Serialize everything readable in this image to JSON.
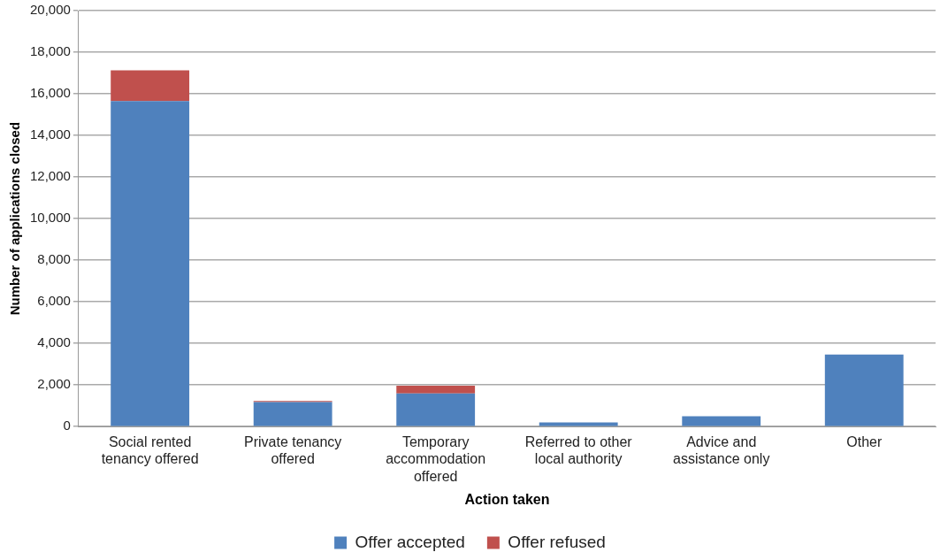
{
  "chart_data": {
    "type": "bar",
    "stacked": true,
    "xlabel": "Action taken",
    "ylabel": "Number of applications closed",
    "categories": [
      "Social rented tenancy offered",
      "Private tenancy offered",
      "Temporary accommodation offered",
      "Referred to other local authority",
      "Advice and assistance only",
      "Other"
    ],
    "series": [
      {
        "name": "Offer accepted",
        "color": "#4f81bd",
        "values": [
          15650,
          1180,
          1590,
          200,
          500,
          3460
        ]
      },
      {
        "name": "Offer refused",
        "color": "#c0504d",
        "values": [
          1480,
          50,
          370,
          0,
          0,
          0
        ]
      }
    ],
    "ylim": [
      0,
      20000
    ],
    "yticks": [
      0,
      {
        "value": 2000,
        "label": "2,000"
      },
      {
        "value": 4000,
        "label": "4,000"
      },
      {
        "value": 6000,
        "label": "6,000"
      },
      {
        "value": 8000,
        "label": "8,000"
      },
      {
        "value": 10000,
        "label": "10,000"
      },
      {
        "value": 12000,
        "label": "12,000"
      },
      {
        "value": 14000,
        "label": "14,000"
      },
      {
        "value": 16000,
        "label": "16,000"
      },
      {
        "value": 18000,
        "label": "18,000"
      },
      {
        "value": 20000,
        "label": "20,000"
      }
    ],
    "grid": "y",
    "legend": "bottom"
  }
}
